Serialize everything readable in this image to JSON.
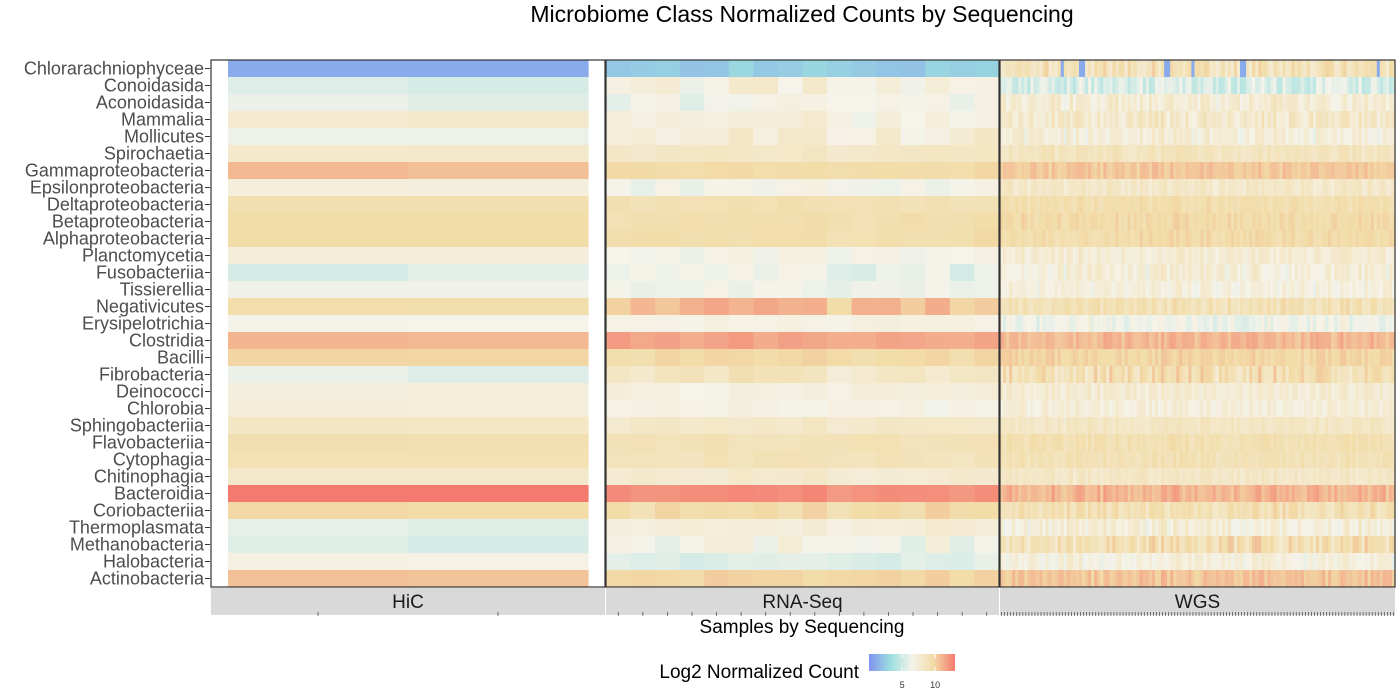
{
  "chart_data": {
    "type": "heatmap",
    "title": "Microbiome Class Normalized Counts by Sequencing",
    "xlabel": "Samples by Sequencing",
    "legend": {
      "title": "Log2 Normalized Count",
      "ticks": [
        5,
        10
      ],
      "position": "bottom",
      "range": [
        0,
        13
      ]
    },
    "color_scale": [
      "#8093f1",
      "#9cdede",
      "#f5f3ea",
      "#f2dca7",
      "#f4796f"
    ],
    "grid": false,
    "rows": [
      "Chlorarachniophyceae",
      "Conoidasida",
      "Aconoidasida",
      "Mammalia",
      "Mollicutes",
      "Spirochaetia",
      "Gammaproteobacteria",
      "Epsilonproteobacteria",
      "Deltaproteobacteria",
      "Betaproteobacteria",
      "Alphaproteobacteria",
      "Planctomycetia",
      "Fusobacteriia",
      "Tissierellia",
      "Negativicutes",
      "Erysipelotrichia",
      "Clostridia",
      "Bacilli",
      "Fibrobacteria",
      "Deinococci",
      "Chlorobia",
      "Sphingobacteriia",
      "Flavobacteriia",
      "Cytophagia",
      "Chitinophagia",
      "Bacteroidia",
      "Coriobacteriia",
      "Thermoplasmata",
      "Methanobacteria",
      "Halobacteria",
      "Actinobacteria"
    ],
    "panels": [
      {
        "name": "HiC",
        "n_samples": 2
      },
      {
        "name": "RNA-Seq",
        "n_samples": 16
      },
      {
        "name": "WGS",
        "n_samples": 130
      }
    ],
    "row_mean_by_panel": {
      "HiC": [
        1.0,
        5.5,
        5.8,
        7.5,
        6.2,
        8.0,
        10.8,
        7.2,
        9.3,
        9.6,
        9.7,
        7.3,
        5.6,
        6.3,
        9.6,
        6.5,
        11.0,
        9.9,
        5.8,
        7.2,
        7.3,
        8.3,
        9.3,
        9.2,
        8.0,
        13.0,
        9.8,
        6.0,
        5.7,
        6.8,
        10.7
      ],
      "RNA-Seq": [
        2.5,
        7.2,
        6.3,
        7.0,
        7.4,
        8.2,
        9.7,
        6.5,
        9.2,
        9.4,
        9.5,
        6.6,
        6.3,
        6.4,
        10.6,
        6.9,
        11.6,
        9.7,
        8.4,
        7.0,
        6.7,
        8.1,
        8.9,
        8.8,
        7.8,
        12.3,
        9.6,
        7.5,
        6.6,
        5.6,
        9.9
      ],
      "WGS": [
        8.9,
        5.4,
        7.6,
        8.0,
        7.2,
        8.6,
        10.4,
        8.1,
        9.4,
        9.7,
        9.6,
        7.6,
        7.3,
        7.1,
        9.0,
        6.4,
        10.9,
        9.9,
        9.2,
        7.6,
        7.3,
        8.3,
        9.2,
        9.0,
        8.2,
        11.0,
        9.1,
        7.3,
        9.2,
        7.1,
        10.5
      ]
    },
    "row_spread_by_panel": {
      "HiC": [
        0,
        0.3,
        0.3,
        0.6,
        0.1,
        0.1,
        0.1,
        0.1,
        0.1,
        0.1,
        0.1,
        0.1,
        0.6,
        0.1,
        0.1,
        0.1,
        0.1,
        0.1,
        0.4,
        0.1,
        0.1,
        0.1,
        0.1,
        0.1,
        0.1,
        0.1,
        0.1,
        0.4,
        0.4,
        0.1,
        0.1
      ],
      "RNA-Seq": [
        0.4,
        1.0,
        0.6,
        0.6,
        0.8,
        0.3,
        0.2,
        0.5,
        0.3,
        0.3,
        0.3,
        0.4,
        0.8,
        0.4,
        0.9,
        0.3,
        0.4,
        0.3,
        0.8,
        0.6,
        0.5,
        0.3,
        0.3,
        0.3,
        0.3,
        0.3,
        0.5,
        0.6,
        0.8,
        0.4,
        0.3
      ],
      "WGS": [
        1.2,
        1.0,
        1.0,
        1.0,
        1.0,
        0.6,
        0.5,
        0.7,
        0.5,
        0.5,
        0.5,
        0.7,
        1.0,
        0.8,
        0.8,
        0.8,
        0.6,
        0.5,
        1.3,
        0.7,
        0.7,
        0.5,
        0.5,
        0.5,
        0.5,
        0.7,
        0.9,
        1.0,
        1.3,
        0.9,
        0.6
      ]
    },
    "low_outliers": {
      "row": "Chlorarachniophyceae",
      "panel": "WGS",
      "sample_indices": [
        20,
        26,
        27,
        54,
        55,
        63,
        79,
        80,
        124
      ],
      "value": 1.0
    }
  }
}
